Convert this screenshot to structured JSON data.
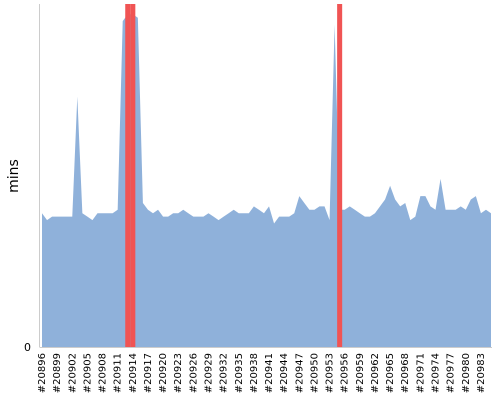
{
  "chart_data": {
    "type": "area",
    "ylabel": "mins",
    "xlabel": "",
    "title": "",
    "y_tick_labels": [
      "0"
    ],
    "ylim": [
      0,
      100
    ],
    "grid": false,
    "colors": {
      "area": "#8fb1da",
      "highlight": "#f05454",
      "axis": "#cccccc"
    },
    "highlight_bars": [
      {
        "x": "#20913",
        "value": 100
      },
      {
        "x": "#20914",
        "value": 100
      },
      {
        "x": "#20955",
        "value": 100
      }
    ],
    "x_labels": [
      "#20896",
      "#20899",
      "#20902",
      "#20905",
      "#20908",
      "#20911",
      "#20914",
      "#20917",
      "#20920",
      "#20923",
      "#20926",
      "#20929",
      "#20932",
      "#20935",
      "#20938",
      "#20941",
      "#20944",
      "#20947",
      "#20950",
      "#20953",
      "#20956",
      "#20959",
      "#20962",
      "#20965",
      "#20968",
      "#20971",
      "#20974",
      "#20977",
      "#20980",
      "#20983"
    ],
    "x": [
      "#20896",
      "#20897",
      "#20898",
      "#20899",
      "#20900",
      "#20901",
      "#20902",
      "#20903",
      "#20904",
      "#20905",
      "#20906",
      "#20907",
      "#20908",
      "#20909",
      "#20910",
      "#20911",
      "#20912",
      "#20913",
      "#20914",
      "#20915",
      "#20916",
      "#20917",
      "#20918",
      "#20919",
      "#20920",
      "#20921",
      "#20922",
      "#20923",
      "#20924",
      "#20925",
      "#20926",
      "#20927",
      "#20928",
      "#20929",
      "#20930",
      "#20931",
      "#20932",
      "#20933",
      "#20934",
      "#20935",
      "#20936",
      "#20937",
      "#20938",
      "#20939",
      "#20940",
      "#20941",
      "#20942",
      "#20943",
      "#20944",
      "#20945",
      "#20946",
      "#20947",
      "#20948",
      "#20949",
      "#20950",
      "#20951",
      "#20952",
      "#20953",
      "#20954",
      "#20955",
      "#20956",
      "#20957",
      "#20958",
      "#20959",
      "#20960",
      "#20961",
      "#20962",
      "#20963",
      "#20964",
      "#20965",
      "#20966",
      "#20967",
      "#20968",
      "#20969",
      "#20970",
      "#20971",
      "#20972",
      "#20973",
      "#20974",
      "#20975",
      "#20976",
      "#20977",
      "#20978",
      "#20979",
      "#20980",
      "#20981",
      "#20982",
      "#20983",
      "#20984",
      "#20985"
    ],
    "values": [
      39,
      37,
      38,
      38,
      38,
      38,
      38,
      73,
      39,
      38,
      37,
      39,
      39,
      39,
      39,
      40,
      95,
      97,
      97,
      96,
      42,
      40,
      39,
      40,
      38,
      38,
      39,
      39,
      40,
      39,
      38,
      38,
      38,
      39,
      38,
      37,
      38,
      39,
      40,
      39,
      39,
      39,
      41,
      40,
      39,
      41,
      36,
      38,
      38,
      38,
      39,
      44,
      42,
      40,
      40,
      41,
      41,
      37,
      94,
      40,
      40,
      41,
      40,
      39,
      38,
      38,
      39,
      41,
      43,
      47,
      43,
      41,
      42,
      37,
      38,
      44,
      44,
      41,
      40,
      49,
      40,
      40,
      40,
      41,
      40,
      43,
      44,
      39,
      40,
      39
    ]
  }
}
